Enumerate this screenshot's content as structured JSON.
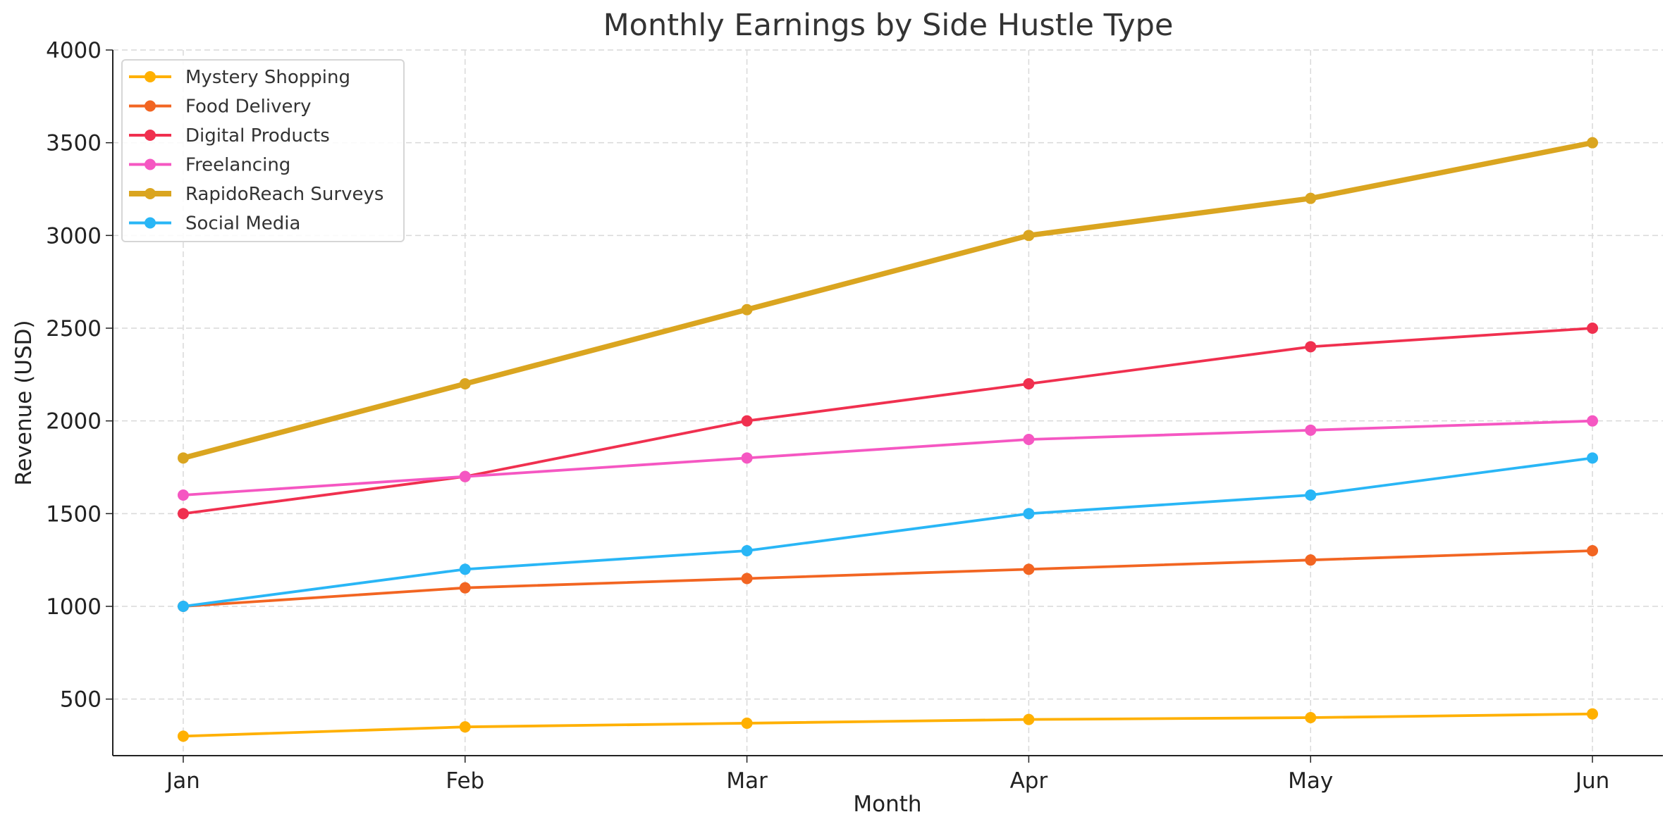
{
  "chart_data": {
    "type": "line",
    "title": "Monthly Earnings by Side Hustle Type",
    "xlabel": "Month",
    "ylabel": "Revenue (USD)",
    "categories": [
      "Jan",
      "Feb",
      "Mar",
      "Apr",
      "May",
      "Jun"
    ],
    "ylim": [
      195,
      4000
    ],
    "yticks": [
      500,
      1000,
      1500,
      2000,
      2500,
      3000,
      3500,
      4000
    ],
    "grid": true,
    "legend_position": "top-left",
    "series": [
      {
        "name": "Mystery Shopping",
        "color": "#FFB000",
        "values": [
          300,
          350,
          370,
          390,
          400,
          420
        ],
        "emphasis": false
      },
      {
        "name": "Food Delivery",
        "color": "#F26522",
        "values": [
          1000,
          1100,
          1150,
          1200,
          1250,
          1300
        ],
        "emphasis": false
      },
      {
        "name": "Digital Products",
        "color": "#F0304F",
        "values": [
          1500,
          1700,
          2000,
          2200,
          2400,
          2500
        ],
        "emphasis": false
      },
      {
        "name": "Freelancing",
        "color": "#F557C2",
        "values": [
          1600,
          1700,
          1800,
          1900,
          1950,
          2000
        ],
        "emphasis": false
      },
      {
        "name": "RapidoReach Surveys",
        "color": "#DAA520",
        "values": [
          1800,
          2200,
          2600,
          3000,
          3200,
          3500
        ],
        "emphasis": true
      },
      {
        "name": "Social Media",
        "color": "#29B6F6",
        "values": [
          1000,
          1200,
          1300,
          1500,
          1600,
          1800
        ],
        "emphasis": false
      }
    ]
  }
}
